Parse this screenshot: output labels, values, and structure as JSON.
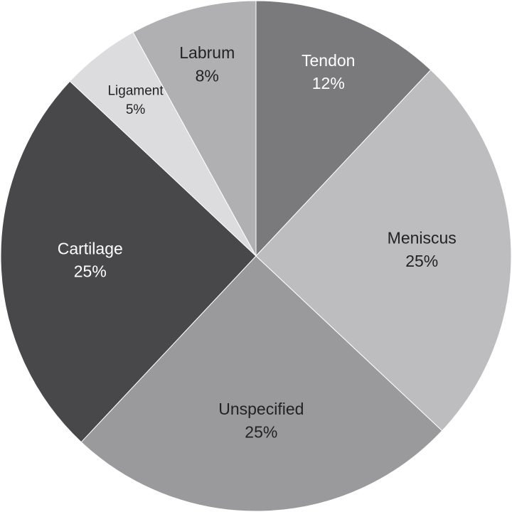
{
  "chart_data": {
    "type": "pie",
    "categories": [
      "Tendon",
      "Meniscus",
      "Unspecified",
      "Cartilage",
      "Ligament",
      "Labrum"
    ],
    "values": [
      12,
      25,
      25,
      25,
      5,
      8
    ],
    "value_labels": [
      "12%",
      "25%",
      "25%",
      "25%",
      "5%",
      "8%"
    ],
    "colors": [
      "#7a7a7c",
      "#bdbdbf",
      "#9a9a9c",
      "#48484a",
      "#dcdcde",
      "#b0b0b2"
    ]
  }
}
